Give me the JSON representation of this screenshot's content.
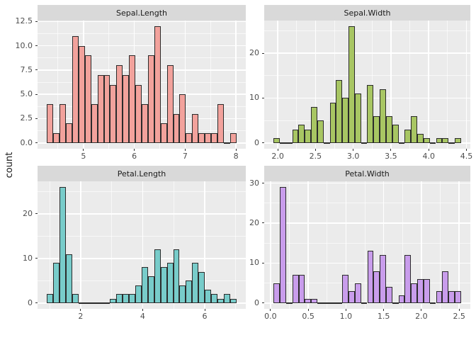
{
  "figure": {
    "ylabel": "count"
  },
  "colors": {
    "background": "#ffffff",
    "panel_bg": "#ebebeb",
    "strip_bg": "#d9d9d9",
    "grid": "#ffffff",
    "bar_border": "#2b2b2b",
    "tick_text": "#4d4d4d",
    "strip_text": "#1a1a1a",
    "fill_sepal_length": "#f2a29c",
    "fill_sepal_width": "#a8c663",
    "fill_petal_length": "#78ccca",
    "fill_petal_width": "#c99dec"
  },
  "chart_data": [
    {
      "type": "bar",
      "title": "Sepal.Length",
      "fill": "#f2a29c",
      "bin_start": 4.2828,
      "bin_width": 0.124138,
      "counts": [
        4,
        1,
        4,
        2,
        11,
        10,
        9,
        4,
        7,
        7,
        6,
        8,
        7,
        9,
        6,
        4,
        9,
        12,
        2,
        8,
        3,
        5,
        1,
        3,
        1,
        1,
        1,
        4,
        0,
        1
      ],
      "xlim": [
        4.0966,
        8.1931
      ],
      "ylim": [
        -0.6,
        12.6
      ],
      "x_ticks": [
        5,
        6,
        7,
        8
      ],
      "x_tick_labels": [
        "5",
        "6",
        "7",
        "8"
      ],
      "x_minor": [
        4.5,
        5.5,
        6.5,
        7.5
      ],
      "y_ticks": [
        0,
        2.5,
        5,
        7.5,
        10,
        12.5
      ],
      "y_tick_labels": [
        "0.0",
        "2.5",
        "5.0",
        "7.5",
        "10.0",
        "12.5"
      ],
      "y_minor": [
        1.25,
        3.75,
        6.25,
        8.75,
        11.25
      ],
      "grid": true,
      "legend": "none"
    },
    {
      "type": "bar",
      "title": "Sepal.Width",
      "fill": "#a8c663",
      "bin_start": 1.9448,
      "bin_width": 0.082759,
      "counts": [
        1,
        0,
        0,
        3,
        4,
        3,
        8,
        5,
        0,
        9,
        14,
        10,
        26,
        11,
        0,
        13,
        6,
        12,
        6,
        4,
        0,
        3,
        6,
        2,
        1,
        0,
        1,
        1,
        0,
        1
      ],
      "xlim": [
        1.8207,
        4.5517
      ],
      "ylim": [
        -1.3,
        27.3
      ],
      "x_ticks": [
        2.0,
        2.5,
        3.0,
        3.5,
        4.0,
        4.5
      ],
      "x_tick_labels": [
        "2.0",
        "2.5",
        "3.0",
        "3.5",
        "4.0",
        "4.5"
      ],
      "x_minor": [
        2.25,
        2.75,
        3.25,
        3.75,
        4.25
      ],
      "y_ticks": [
        0,
        10,
        20
      ],
      "y_tick_labels": [
        "0",
        "10",
        "20"
      ],
      "y_minor": [
        5,
        15,
        25
      ],
      "grid": true,
      "legend": "none"
    },
    {
      "type": "bar",
      "title": "Petal.Length",
      "fill": "#78ccca",
      "bin_start": 0.9155,
      "bin_width": 0.203448,
      "counts": [
        2,
        9,
        26,
        11,
        2,
        0,
        0,
        0,
        0,
        0,
        1,
        2,
        2,
        2,
        4,
        8,
        6,
        12,
        8,
        9,
        12,
        4,
        5,
        9,
        7,
        3,
        2,
        1,
        2,
        1
      ],
      "xlim": [
        0.6103,
        7.3241
      ],
      "ylim": [
        -1.3,
        27.3
      ],
      "x_ticks": [
        2,
        4,
        6
      ],
      "x_tick_labels": [
        "2",
        "4",
        "6"
      ],
      "x_minor": [
        1,
        3,
        5,
        7
      ],
      "y_ticks": [
        0,
        10,
        20
      ],
      "y_tick_labels": [
        "0",
        "10",
        "20"
      ],
      "y_minor": [
        5,
        15,
        25
      ],
      "grid": true,
      "legend": "none"
    },
    {
      "type": "bar",
      "title": "Petal.Width",
      "fill": "#c99dec",
      "bin_start": 0.0414,
      "bin_width": 0.082759,
      "counts": [
        5,
        29,
        0,
        7,
        7,
        1,
        1,
        0,
        0,
        0,
        0,
        7,
        3,
        5,
        0,
        13,
        8,
        12,
        4,
        0,
        2,
        12,
        5,
        6,
        6,
        0,
        3,
        8,
        3,
        3
      ],
      "xlim": [
        -0.0828,
        2.6483
      ],
      "ylim": [
        -1.45,
        30.45
      ],
      "x_ticks": [
        0.0,
        0.5,
        1.0,
        1.5,
        2.0,
        2.5
      ],
      "x_tick_labels": [
        "0.0",
        "0.5",
        "1.0",
        "1.5",
        "2.0",
        "2.5"
      ],
      "x_minor": [
        0.25,
        0.75,
        1.25,
        1.75,
        2.25
      ],
      "y_ticks": [
        0,
        10,
        20,
        30
      ],
      "y_tick_labels": [
        "0",
        "10",
        "20",
        "30"
      ],
      "y_minor": [
        5,
        15,
        25
      ],
      "grid": true,
      "legend": "none"
    }
  ]
}
